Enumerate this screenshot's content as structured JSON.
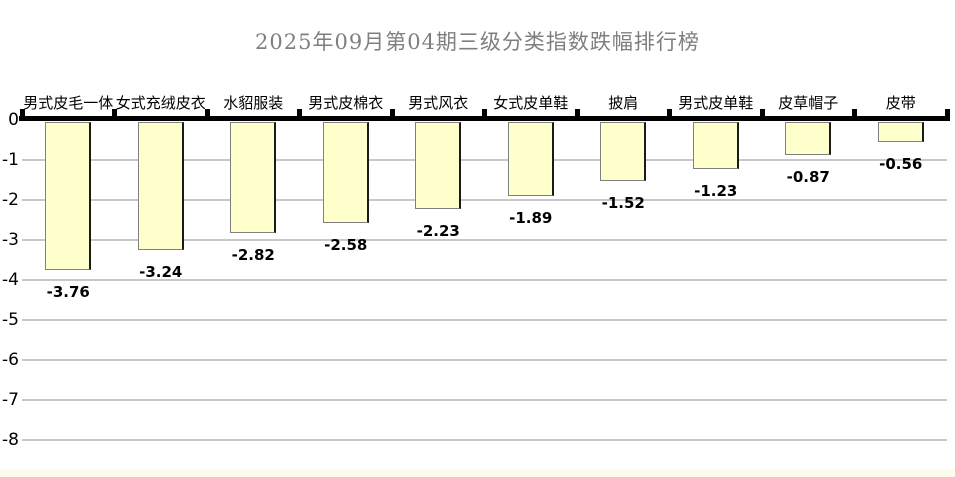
{
  "chart_data": {
    "type": "bar",
    "title": "2025年09月第04期三级分类指数跌幅排行榜",
    "categories": [
      "男式皮毛一体",
      "女式充绒皮衣",
      "水貂服装",
      "男式皮棉衣",
      "男式风衣",
      "女式皮单鞋",
      "披肩",
      "男式皮单鞋",
      "皮草帽子",
      "皮带"
    ],
    "values": [
      -3.76,
      -3.24,
      -2.82,
      -2.58,
      -2.23,
      -1.89,
      -1.52,
      -1.23,
      -0.87,
      -0.56
    ],
    "value_labels": [
      "-3.76",
      "-3.24",
      "-2.82",
      "-2.58",
      "-2.23",
      "-1.89",
      "-1.52",
      "-1.23",
      "-0.87",
      "-0.56"
    ],
    "y_ticks": [
      "0",
      "-1",
      "-2",
      "-3",
      "-4",
      "-5",
      "-6",
      "-7",
      "-8"
    ],
    "ylim": [
      -8,
      0
    ],
    "xlabel": "",
    "ylabel": "",
    "grid": true,
    "legend": "none",
    "category_label_position": "above-axis",
    "value_label_position": "below-bar",
    "colors": {
      "bar_fill": "#ffffcc",
      "bar_border": "#808080",
      "bar_right_edge": "#1a1a1a",
      "gridline": "#c8c8c8",
      "axis": "#000000",
      "title": "#7f7f7f",
      "label": "#000000",
      "background": "#ffffff",
      "footer_strip": "#fdfcec"
    }
  }
}
